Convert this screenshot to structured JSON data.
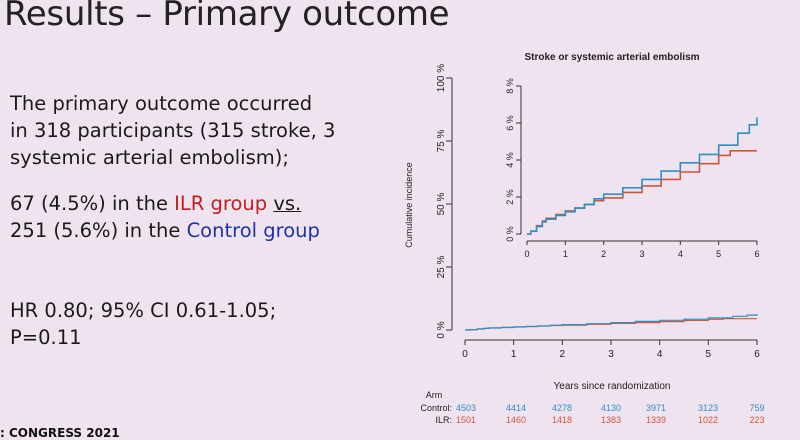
{
  "slide": {
    "title": "Results – Primary outcome",
    "para1": [
      "The primary outcome occurred",
      "in 318 participants (315 stroke, 3",
      "systemic arterial embolism);"
    ],
    "para2_line1_a": "67 (4.5%) in the ",
    "para2_ilr": "ILR group",
    "para2_space": " ",
    "para2_vs": "vs.",
    "para2_line2_a": "251 (5.6%) in the ",
    "para2_control": "Control group",
    "para3": [
      "HR 0.80; 95% CI 0.61-1.05;",
      "P=0.11"
    ],
    "footer": ": CONGRESS 2021"
  },
  "colors": {
    "background": "#efe3ef",
    "control": "#2e8fc4",
    "ilr": "#d2553a",
    "ilr_text": "#c0201e",
    "control_text": "#1f33a8"
  },
  "chart_data": {
    "type": "line",
    "xlabel": "Years since randomization",
    "ylabel": "Cumulative incidence",
    "main": {
      "x_ticks": [
        "0",
        "1",
        "2",
        "3",
        "4",
        "5",
        "6"
      ],
      "y_ticks": [
        "0 %",
        "25 %",
        "50 %",
        "75 %",
        "100 %"
      ],
      "xlim": [
        0,
        6
      ],
      "ylim": [
        0,
        100
      ]
    },
    "inset": {
      "title": "Stroke or systemic arterial embolism",
      "x_ticks": [
        "0",
        "1",
        "2",
        "3",
        "4",
        "5",
        "6"
      ],
      "y_ticks": [
        "0 %",
        "2 %",
        "4 %",
        "6 %",
        "8 %"
      ],
      "xlim": [
        0,
        6
      ],
      "ylim": [
        0,
        8
      ]
    },
    "series": [
      {
        "name": "Control",
        "color": "#2e8fc4",
        "x": [
          0,
          0.1,
          0.25,
          0.4,
          0.5,
          0.75,
          1.0,
          1.25,
          1.5,
          1.75,
          2.0,
          2.5,
          3.0,
          3.5,
          4.0,
          4.5,
          5.0,
          5.5,
          5.8,
          6.0
        ],
        "y": [
          0,
          0.15,
          0.4,
          0.65,
          0.8,
          1.0,
          1.2,
          1.4,
          1.6,
          1.9,
          2.15,
          2.5,
          2.95,
          3.4,
          3.85,
          4.3,
          4.8,
          5.45,
          5.9,
          6.3
        ]
      },
      {
        "name": "ILR",
        "color": "#d2553a",
        "x": [
          0,
          0.1,
          0.25,
          0.4,
          0.5,
          0.75,
          1.0,
          1.25,
          1.5,
          1.75,
          2.0,
          2.5,
          3.0,
          3.5,
          4.0,
          4.5,
          5.0,
          5.3,
          5.5,
          6.0
        ],
        "y": [
          0,
          0.15,
          0.45,
          0.7,
          0.85,
          1.05,
          1.25,
          1.4,
          1.6,
          1.8,
          1.95,
          2.25,
          2.6,
          2.95,
          3.35,
          3.8,
          4.25,
          4.5,
          4.5,
          4.5
        ]
      }
    ],
    "risk_table": {
      "header": "Arm",
      "rows": [
        {
          "label": "Control:",
          "values": [
            "4503",
            "4414",
            "4278",
            "4130",
            "3971",
            "3123",
            "759"
          ],
          "color": "#2e8fc4"
        },
        {
          "label": "ILR:",
          "values": [
            "1501",
            "1460",
            "1418",
            "1383",
            "1339",
            "1022",
            "223"
          ],
          "color": "#d2553a"
        }
      ]
    }
  }
}
